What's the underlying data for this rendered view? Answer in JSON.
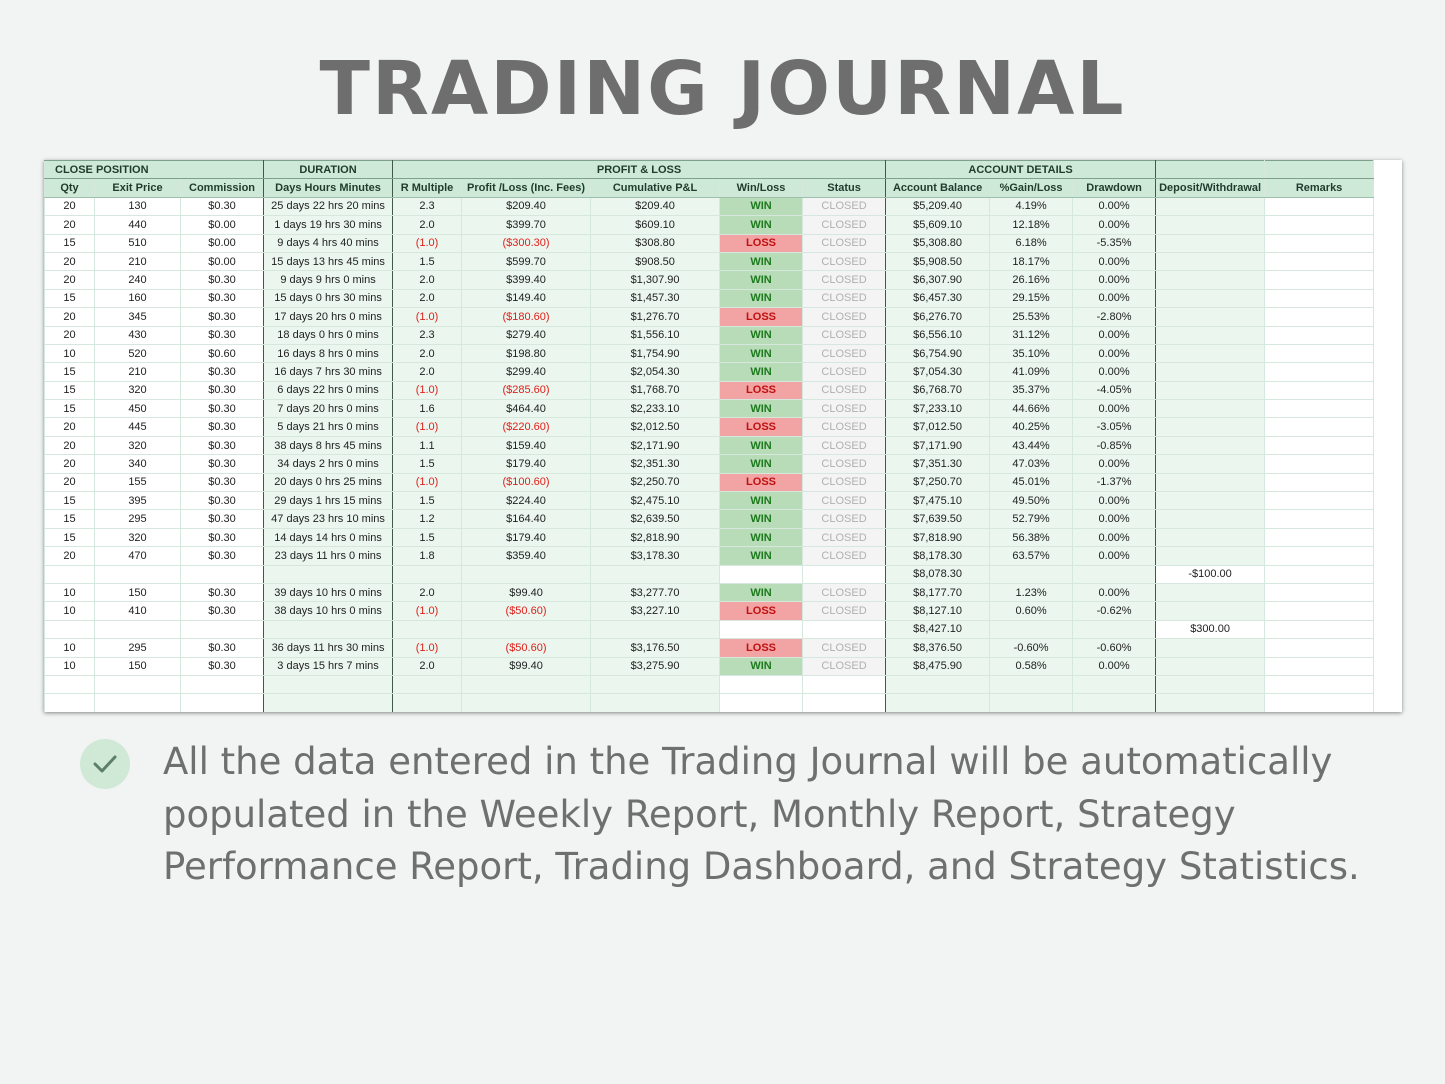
{
  "page": {
    "title": "TRADING JOURNAL",
    "note": "All the data entered in the Trading Journal will be automatically populated in the Weekly Report, Monthly Report, Strategy Performance Report, Trading Dashboard, and Strategy Statistics.",
    "note_icon": "check-icon"
  },
  "colors": {
    "group_header": "#cfe9d9",
    "win": "#b8dcb8",
    "loss": "#f2a3a3",
    "negative_text": "#e0201b",
    "title_text": "#6e6e6e"
  },
  "groups": {
    "close_position": "CLOSE POSITION",
    "duration": "DURATION",
    "profit_loss": "PROFIT & LOSS",
    "account_details": "ACCOUNT DETAILS"
  },
  "columns": {
    "qty": "Qty",
    "exit_price": "Exit Price",
    "commission": "Commission",
    "duration": "Days Hours Minutes",
    "r_multiple": "R Multiple",
    "profit_loss": "Profit /Loss (Inc. Fees)",
    "cumulative": "Cumulative P&L",
    "win_loss": "Win/Loss",
    "status": "Status",
    "balance": "Account Balance",
    "gain_loss": "%Gain/Loss",
    "drawdown": "Drawdown",
    "deposit": "Deposit/Withdrawal",
    "remarks": "Remarks"
  },
  "rows": [
    {
      "qty": "20",
      "exit": "130",
      "comm": "$0.30",
      "dur": "25 days 22 hrs 20 mins",
      "r": "2.3",
      "pl": "$209.40",
      "cum": "$209.40",
      "wl": "WIN",
      "status": "CLOSED",
      "bal": "$5,209.40",
      "gain": "4.19%",
      "dd": "0.00%",
      "dep": "",
      "rem": ""
    },
    {
      "qty": "20",
      "exit": "440",
      "comm": "$0.00",
      "dur": "1 days 19 hrs 30 mins",
      "r": "2.0",
      "pl": "$399.70",
      "cum": "$609.10",
      "wl": "WIN",
      "status": "CLOSED",
      "bal": "$5,609.10",
      "gain": "12.18%",
      "dd": "0.00%",
      "dep": "",
      "rem": ""
    },
    {
      "qty": "15",
      "exit": "510",
      "comm": "$0.00",
      "dur": "9 days 4 hrs 40 mins",
      "r": "(1.0)",
      "pl": "($300.30)",
      "cum": "$308.80",
      "wl": "LOSS",
      "status": "CLOSED",
      "bal": "$5,308.80",
      "gain": "6.18%",
      "dd": "-5.35%",
      "dep": "",
      "rem": ""
    },
    {
      "qty": "20",
      "exit": "210",
      "comm": "$0.00",
      "dur": "15 days 13 hrs 45 mins",
      "r": "1.5",
      "pl": "$599.70",
      "cum": "$908.50",
      "wl": "WIN",
      "status": "CLOSED",
      "bal": "$5,908.50",
      "gain": "18.17%",
      "dd": "0.00%",
      "dep": "",
      "rem": ""
    },
    {
      "qty": "20",
      "exit": "240",
      "comm": "$0.30",
      "dur": "9 days 9 hrs 0 mins",
      "r": "2.0",
      "pl": "$399.40",
      "cum": "$1,307.90",
      "wl": "WIN",
      "status": "CLOSED",
      "bal": "$6,307.90",
      "gain": "26.16%",
      "dd": "0.00%",
      "dep": "",
      "rem": ""
    },
    {
      "qty": "15",
      "exit": "160",
      "comm": "$0.30",
      "dur": "15 days 0 hrs 30 mins",
      "r": "2.0",
      "pl": "$149.40",
      "cum": "$1,457.30",
      "wl": "WIN",
      "status": "CLOSED",
      "bal": "$6,457.30",
      "gain": "29.15%",
      "dd": "0.00%",
      "dep": "",
      "rem": ""
    },
    {
      "qty": "20",
      "exit": "345",
      "comm": "$0.30",
      "dur": "17 days 20 hrs 0 mins",
      "r": "(1.0)",
      "pl": "($180.60)",
      "cum": "$1,276.70",
      "wl": "LOSS",
      "status": "CLOSED",
      "bal": "$6,276.70",
      "gain": "25.53%",
      "dd": "-2.80%",
      "dep": "",
      "rem": ""
    },
    {
      "qty": "20",
      "exit": "430",
      "comm": "$0.30",
      "dur": "18 days 0 hrs 0 mins",
      "r": "2.3",
      "pl": "$279.40",
      "cum": "$1,556.10",
      "wl": "WIN",
      "status": "CLOSED",
      "bal": "$6,556.10",
      "gain": "31.12%",
      "dd": "0.00%",
      "dep": "",
      "rem": ""
    },
    {
      "qty": "10",
      "exit": "520",
      "comm": "$0.60",
      "dur": "16 days 8 hrs 0 mins",
      "r": "2.0",
      "pl": "$198.80",
      "cum": "$1,754.90",
      "wl": "WIN",
      "status": "CLOSED",
      "bal": "$6,754.90",
      "gain": "35.10%",
      "dd": "0.00%",
      "dep": "",
      "rem": ""
    },
    {
      "qty": "15",
      "exit": "210",
      "comm": "$0.30",
      "dur": "16 days 7 hrs 30 mins",
      "r": "2.0",
      "pl": "$299.40",
      "cum": "$2,054.30",
      "wl": "WIN",
      "status": "CLOSED",
      "bal": "$7,054.30",
      "gain": "41.09%",
      "dd": "0.00%",
      "dep": "",
      "rem": ""
    },
    {
      "qty": "15",
      "exit": "320",
      "comm": "$0.30",
      "dur": "6 days 22 hrs 0 mins",
      "r": "(1.0)",
      "pl": "($285.60)",
      "cum": "$1,768.70",
      "wl": "LOSS",
      "status": "CLOSED",
      "bal": "$6,768.70",
      "gain": "35.37%",
      "dd": "-4.05%",
      "dep": "",
      "rem": ""
    },
    {
      "qty": "15",
      "exit": "450",
      "comm": "$0.30",
      "dur": "7 days 20 hrs 0 mins",
      "r": "1.6",
      "pl": "$464.40",
      "cum": "$2,233.10",
      "wl": "WIN",
      "status": "CLOSED",
      "bal": "$7,233.10",
      "gain": "44.66%",
      "dd": "0.00%",
      "dep": "",
      "rem": ""
    },
    {
      "qty": "20",
      "exit": "445",
      "comm": "$0.30",
      "dur": "5 days 21 hrs 0 mins",
      "r": "(1.0)",
      "pl": "($220.60)",
      "cum": "$2,012.50",
      "wl": "LOSS",
      "status": "CLOSED",
      "bal": "$7,012.50",
      "gain": "40.25%",
      "dd": "-3.05%",
      "dep": "",
      "rem": ""
    },
    {
      "qty": "20",
      "exit": "320",
      "comm": "$0.30",
      "dur": "38 days 8 hrs 45 mins",
      "r": "1.1",
      "pl": "$159.40",
      "cum": "$2,171.90",
      "wl": "WIN",
      "status": "CLOSED",
      "bal": "$7,171.90",
      "gain": "43.44%",
      "dd": "-0.85%",
      "dep": "",
      "rem": ""
    },
    {
      "qty": "20",
      "exit": "340",
      "comm": "$0.30",
      "dur": "34 days 2 hrs 0 mins",
      "r": "1.5",
      "pl": "$179.40",
      "cum": "$2,351.30",
      "wl": "WIN",
      "status": "CLOSED",
      "bal": "$7,351.30",
      "gain": "47.03%",
      "dd": "0.00%",
      "dep": "",
      "rem": ""
    },
    {
      "qty": "20",
      "exit": "155",
      "comm": "$0.30",
      "dur": "20 days 0 hrs 25 mins",
      "r": "(1.0)",
      "pl": "($100.60)",
      "cum": "$2,250.70",
      "wl": "LOSS",
      "status": "CLOSED",
      "bal": "$7,250.70",
      "gain": "45.01%",
      "dd": "-1.37%",
      "dep": "",
      "rem": ""
    },
    {
      "qty": "15",
      "exit": "395",
      "comm": "$0.30",
      "dur": "29 days 1 hrs 15 mins",
      "r": "1.5",
      "pl": "$224.40",
      "cum": "$2,475.10",
      "wl": "WIN",
      "status": "CLOSED",
      "bal": "$7,475.10",
      "gain": "49.50%",
      "dd": "0.00%",
      "dep": "",
      "rem": ""
    },
    {
      "qty": "15",
      "exit": "295",
      "comm": "$0.30",
      "dur": "47 days 23 hrs 10 mins",
      "r": "1.2",
      "pl": "$164.40",
      "cum": "$2,639.50",
      "wl": "WIN",
      "status": "CLOSED",
      "bal": "$7,639.50",
      "gain": "52.79%",
      "dd": "0.00%",
      "dep": "",
      "rem": ""
    },
    {
      "qty": "15",
      "exit": "320",
      "comm": "$0.30",
      "dur": "14 days 14 hrs 0 mins",
      "r": "1.5",
      "pl": "$179.40",
      "cum": "$2,818.90",
      "wl": "WIN",
      "status": "CLOSED",
      "bal": "$7,818.90",
      "gain": "56.38%",
      "dd": "0.00%",
      "dep": "",
      "rem": ""
    },
    {
      "qty": "20",
      "exit": "470",
      "comm": "$0.30",
      "dur": "23 days 11 hrs 0 mins",
      "r": "1.8",
      "pl": "$359.40",
      "cum": "$3,178.30",
      "wl": "WIN",
      "status": "CLOSED",
      "bal": "$8,178.30",
      "gain": "63.57%",
      "dd": "0.00%",
      "dep": "",
      "rem": ""
    },
    {
      "qty": "",
      "exit": "",
      "comm": "",
      "dur": "",
      "r": "",
      "pl": "",
      "cum": "",
      "wl": "",
      "status": "",
      "bal": "$8,078.30",
      "gain": "",
      "dd": "",
      "dep": "-$100.00",
      "rem": ""
    },
    {
      "qty": "10",
      "exit": "150",
      "comm": "$0.30",
      "dur": "39 days 10 hrs 0 mins",
      "r": "2.0",
      "pl": "$99.40",
      "cum": "$3,277.70",
      "wl": "WIN",
      "status": "CLOSED",
      "bal": "$8,177.70",
      "gain": "1.23%",
      "dd": "0.00%",
      "dep": "",
      "rem": ""
    },
    {
      "qty": "10",
      "exit": "410",
      "comm": "$0.30",
      "dur": "38 days 10 hrs 0 mins",
      "r": "(1.0)",
      "pl": "($50.60)",
      "cum": "$3,227.10",
      "wl": "LOSS",
      "status": "CLOSED",
      "bal": "$8,127.10",
      "gain": "0.60%",
      "dd": "-0.62%",
      "dep": "",
      "rem": ""
    },
    {
      "qty": "",
      "exit": "",
      "comm": "",
      "dur": "",
      "r": "",
      "pl": "",
      "cum": "",
      "wl": "",
      "status": "",
      "bal": "$8,427.10",
      "gain": "",
      "dd": "",
      "dep": "$300.00",
      "rem": ""
    },
    {
      "qty": "10",
      "exit": "295",
      "comm": "$0.30",
      "dur": "36 days 11 hrs 30 mins",
      "r": "(1.0)",
      "pl": "($50.60)",
      "cum": "$3,176.50",
      "wl": "LOSS",
      "status": "CLOSED",
      "bal": "$8,376.50",
      "gain": "-0.60%",
      "dd": "-0.60%",
      "dep": "",
      "rem": ""
    },
    {
      "qty": "10",
      "exit": "150",
      "comm": "$0.30",
      "dur": "3 days 15 hrs 7 mins",
      "r": "2.0",
      "pl": "$99.40",
      "cum": "$3,275.90",
      "wl": "WIN",
      "status": "CLOSED",
      "bal": "$8,475.90",
      "gain": "0.58%",
      "dd": "0.00%",
      "dep": "",
      "rem": ""
    },
    {
      "qty": "",
      "exit": "",
      "comm": "",
      "dur": "",
      "r": "",
      "pl": "",
      "cum": "",
      "wl": "",
      "status": "",
      "bal": "",
      "gain": "",
      "dd": "",
      "dep": "",
      "rem": ""
    },
    {
      "qty": "",
      "exit": "",
      "comm": "",
      "dur": "",
      "r": "",
      "pl": "",
      "cum": "",
      "wl": "",
      "status": "",
      "bal": "",
      "gain": "",
      "dd": "",
      "dep": "",
      "rem": ""
    },
    {
      "qty": "",
      "exit": "",
      "comm": "",
      "dur": "",
      "r": "",
      "pl": "",
      "cum": "",
      "wl": "",
      "status": "",
      "bal": "",
      "gain": "",
      "dd": "",
      "dep": "",
      "rem": ""
    }
  ]
}
